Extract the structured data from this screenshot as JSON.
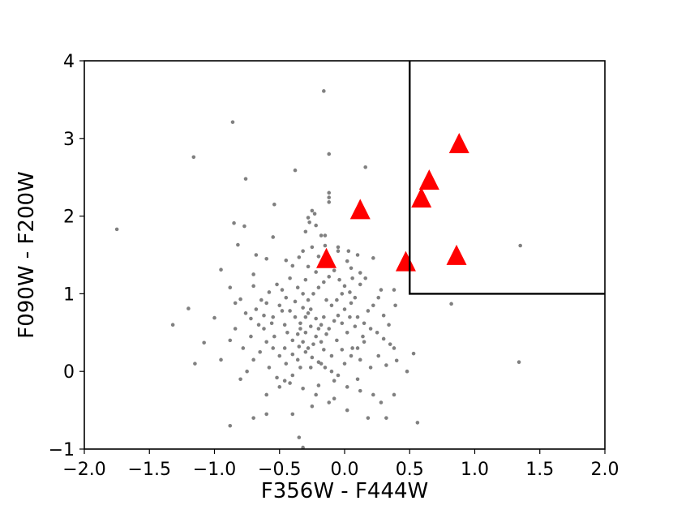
{
  "chart_data": {
    "type": "scatter",
    "title": "",
    "xlabel": "F356W - F444W",
    "ylabel": "F090W - F200W",
    "xlim": [
      -2.0,
      2.0
    ],
    "ylim": [
      -1,
      4
    ],
    "x_ticks": [
      -2.0,
      -1.5,
      -1.0,
      -0.5,
      0.0,
      0.5,
      1.0,
      1.5,
      2.0
    ],
    "x_tick_labels": [
      "−2.0",
      "−1.5",
      "−1.0",
      "−0.5",
      "0.0",
      "0.5",
      "1.0",
      "1.5",
      "2.0"
    ],
    "y_ticks": [
      -1,
      0,
      1,
      2,
      3,
      4
    ],
    "y_tick_labels": [
      "−1",
      "0",
      "1",
      "2",
      "3",
      "4"
    ],
    "grid": false,
    "colors": {
      "points": "#808080",
      "highlight": "#ff0000",
      "box": "#000000"
    },
    "selection_box": {
      "x0": 0.5,
      "x1": 2.0,
      "y0": 1.0,
      "y1": 4.0
    },
    "series": [
      {
        "marker": "circle",
        "color": "#808080",
        "points": [
          [
            -1.75,
            1.83
          ],
          [
            -0.86,
            3.21
          ],
          [
            -0.16,
            3.61
          ],
          [
            -1.16,
            2.76
          ],
          [
            -0.12,
            2.8
          ],
          [
            -0.38,
            2.59
          ],
          [
            0.16,
            2.63
          ],
          [
            -0.76,
            2.48
          ],
          [
            -0.54,
            2.15
          ],
          [
            -0.85,
            1.91
          ],
          [
            -0.77,
            1.87
          ],
          [
            -0.12,
            2.3
          ],
          [
            -0.12,
            2.24
          ],
          [
            -0.12,
            2.18
          ],
          [
            -0.25,
            2.07
          ],
          [
            -0.23,
            2.03
          ],
          [
            -0.28,
            1.98
          ],
          [
            -0.22,
            1.88
          ],
          [
            -0.27,
            1.92
          ],
          [
            -0.3,
            1.8
          ],
          [
            -0.18,
            1.75
          ],
          [
            -0.55,
            1.73
          ],
          [
            -0.82,
            1.63
          ],
          [
            -0.15,
            1.62
          ],
          [
            -0.25,
            1.6
          ],
          [
            -0.05,
            1.55
          ],
          [
            0.03,
            1.55
          ],
          [
            0.22,
            1.46
          ],
          [
            0.45,
            1.37
          ],
          [
            -0.68,
            1.5
          ],
          [
            -0.6,
            1.45
          ],
          [
            -0.45,
            1.43
          ],
          [
            -0.35,
            1.47
          ],
          [
            -0.28,
            1.35
          ],
          [
            -0.4,
            1.36
          ],
          [
            -0.7,
            1.25
          ],
          [
            -0.95,
            1.31
          ],
          [
            -1.2,
            0.81
          ],
          [
            -1.32,
            0.6
          ],
          [
            -1.0,
            0.69
          ],
          [
            -0.88,
            1.08
          ],
          [
            -0.8,
            0.93
          ],
          [
            0.38,
            1.05
          ],
          [
            0.28,
            1.05
          ],
          [
            0.12,
            1.27
          ],
          [
            0.05,
            1.33
          ],
          [
            0.39,
            0.85
          ],
          [
            0.53,
            0.23
          ],
          [
            0.56,
            -0.66
          ],
          [
            0.82,
            0.87
          ],
          [
            1.35,
            1.62
          ],
          [
            1.34,
            0.12
          ],
          [
            -0.95,
            0.15
          ],
          [
            -1.15,
            0.1
          ],
          [
            -0.88,
            -0.7
          ],
          [
            -0.7,
            -0.6
          ],
          [
            -0.6,
            -0.55
          ],
          [
            -0.4,
            -0.55
          ],
          [
            -0.35,
            -0.85
          ],
          [
            -0.32,
            -0.98
          ],
          [
            -0.22,
            -0.3
          ],
          [
            0.18,
            -0.6
          ],
          [
            0.32,
            -0.6
          ],
          [
            0.28,
            -0.4
          ],
          [
            0.22,
            -0.3
          ],
          [
            0.38,
            0.3
          ],
          [
            0.4,
            0.14
          ],
          [
            0.1,
            -0.1
          ],
          [
            0.02,
            -0.5
          ],
          [
            0.38,
            -0.3
          ],
          [
            0.48,
            0.0
          ],
          [
            -0.6,
            -0.3
          ],
          [
            -0.5,
            -0.2
          ],
          [
            -0.75,
            0.0
          ],
          [
            -0.8,
            -0.1
          ],
          [
            -1.08,
            0.37
          ],
          [
            -0.88,
            0.4
          ],
          [
            -0.72,
            0.45
          ],
          [
            -0.62,
            0.55
          ],
          [
            -0.55,
            0.7
          ],
          [
            -0.5,
            0.85
          ],
          [
            -0.45,
            0.95
          ],
          [
            -0.38,
            0.9
          ],
          [
            -0.32,
            0.82
          ],
          [
            -0.28,
            0.75
          ],
          [
            -0.22,
            0.68
          ],
          [
            -0.18,
            0.6
          ],
          [
            -0.12,
            0.55
          ],
          [
            -0.08,
            0.65
          ],
          [
            -0.05,
            0.72
          ],
          [
            0.0,
            0.8
          ],
          [
            0.05,
            0.88
          ],
          [
            0.1,
            0.7
          ],
          [
            0.15,
            0.62
          ],
          [
            0.2,
            0.55
          ],
          [
            0.25,
            0.5
          ],
          [
            0.3,
            0.42
          ],
          [
            0.35,
            0.35
          ],
          [
            -0.4,
            0.4
          ],
          [
            -0.35,
            0.32
          ],
          [
            -0.3,
            0.25
          ],
          [
            -0.25,
            0.18
          ],
          [
            -0.2,
            0.12
          ],
          [
            -0.15,
            0.05
          ],
          [
            -0.1,
            0.0
          ],
          [
            -0.05,
            -0.05
          ],
          [
            0.0,
            0.1
          ],
          [
            0.05,
            0.2
          ],
          [
            0.1,
            0.3
          ],
          [
            0.15,
            0.38
          ],
          [
            -0.45,
            0.1
          ],
          [
            -0.5,
            0.2
          ],
          [
            -0.55,
            0.3
          ],
          [
            -0.6,
            0.38
          ],
          [
            -0.65,
            0.25
          ],
          [
            -0.58,
            0.05
          ],
          [
            -0.52,
            -0.08
          ],
          [
            -0.42,
            -0.15
          ],
          [
            -0.32,
            -0.22
          ],
          [
            -0.2,
            -0.18
          ],
          [
            -0.08,
            -0.12
          ],
          [
            0.02,
            -0.2
          ],
          [
            0.12,
            -0.25
          ],
          [
            -0.3,
            0.5
          ],
          [
            -0.26,
            0.58
          ],
          [
            -0.22,
            0.45
          ],
          [
            -0.18,
            0.38
          ],
          [
            -0.14,
            0.48
          ],
          [
            -0.34,
            0.62
          ],
          [
            -0.38,
            0.7
          ],
          [
            -0.42,
            0.78
          ],
          [
            -0.28,
            0.92
          ],
          [
            -0.24,
            1.0
          ],
          [
            -0.2,
            1.08
          ],
          [
            -0.16,
            1.15
          ],
          [
            -0.12,
            1.22
          ],
          [
            -0.08,
            1.3
          ],
          [
            -0.04,
            1.18
          ],
          [
            0.0,
            1.1
          ],
          [
            0.04,
            1.02
          ],
          [
            0.08,
            0.95
          ],
          [
            0.12,
            1.12
          ],
          [
            0.16,
            1.2
          ],
          [
            -0.48,
            1.05
          ],
          [
            -0.52,
            1.12
          ],
          [
            -0.58,
            1.02
          ],
          [
            -0.64,
            0.92
          ],
          [
            -0.68,
            0.8
          ],
          [
            -0.72,
            0.68
          ],
          [
            -0.66,
            0.6
          ],
          [
            -0.62,
            0.72
          ],
          [
            -0.46,
            0.6
          ],
          [
            -0.36,
            0.48
          ],
          [
            -0.32,
            0.38
          ],
          [
            -0.28,
            0.3
          ],
          [
            -0.24,
            0.35
          ],
          [
            -0.16,
            0.28
          ],
          [
            -0.06,
            0.4
          ],
          [
            0.02,
            0.5
          ],
          [
            0.08,
            0.58
          ],
          [
            0.18,
            0.78
          ],
          [
            0.22,
            0.85
          ],
          [
            0.26,
            0.95
          ],
          [
            0.3,
            0.72
          ],
          [
            0.34,
            0.6
          ],
          [
            -0.1,
            0.85
          ],
          [
            -0.14,
            0.92
          ],
          [
            -0.26,
            0.8
          ],
          [
            -0.3,
            0.7
          ],
          [
            -0.34,
            0.55
          ],
          [
            -0.2,
            0.55
          ],
          [
            -0.16,
            0.7
          ],
          [
            -0.06,
            0.92
          ],
          [
            -0.02,
            1.0
          ],
          [
            0.06,
            1.2
          ],
          [
            -0.44,
            0.5
          ],
          [
            -0.4,
            0.22
          ],
          [
            -0.36,
            0.15
          ],
          [
            -0.26,
            0.05
          ],
          [
            -0.46,
            0.3
          ],
          [
            -0.54,
            0.45
          ],
          [
            -0.7,
            0.15
          ],
          [
            -0.78,
            0.3
          ],
          [
            -0.84,
            0.55
          ],
          [
            -0.76,
            0.75
          ],
          [
            -0.84,
            0.88
          ],
          [
            0.06,
            0.3
          ],
          [
            0.12,
            0.15
          ],
          [
            0.2,
            0.05
          ],
          [
            0.26,
            0.2
          ],
          [
            0.32,
            0.08
          ],
          [
            -0.22,
            1.28
          ],
          [
            -0.3,
            1.18
          ],
          [
            -0.36,
            1.08
          ],
          [
            -0.42,
            1.2
          ],
          [
            -0.1,
            1.4
          ],
          [
            -0.2,
            1.48
          ],
          [
            0.02,
            1.42
          ],
          [
            0.1,
            1.5
          ],
          [
            -0.02,
            0.28
          ],
          [
            -0.1,
            0.2
          ],
          [
            -0.18,
            0.1
          ],
          [
            -0.34,
            0.05
          ],
          [
            -0.4,
            -0.05
          ],
          [
            -0.46,
            -0.12
          ],
          [
            -0.12,
            -0.4
          ],
          [
            -0.25,
            -0.45
          ],
          [
            -0.08,
            -0.35
          ],
          [
            -0.56,
            0.62
          ],
          [
            -0.6,
            0.88
          ],
          [
            -0.02,
            0.62
          ],
          [
            0.04,
            0.7
          ],
          [
            0.14,
            0.45
          ],
          [
            -0.32,
            1.0
          ],
          [
            -0.48,
            0.78
          ],
          [
            -0.7,
            1.1
          ],
          [
            -0.05,
            1.6
          ],
          [
            -0.15,
            1.75
          ],
          [
            -0.32,
            1.55
          ]
        ]
      },
      {
        "marker": "triangle-up",
        "color": "#ff0000",
        "points": [
          [
            -0.14,
            1.44
          ],
          [
            0.12,
            2.07
          ],
          [
            0.47,
            1.4
          ],
          [
            0.59,
            2.22
          ],
          [
            0.65,
            2.45
          ],
          [
            0.86,
            1.48
          ],
          [
            0.88,
            2.92
          ]
        ]
      }
    ]
  }
}
